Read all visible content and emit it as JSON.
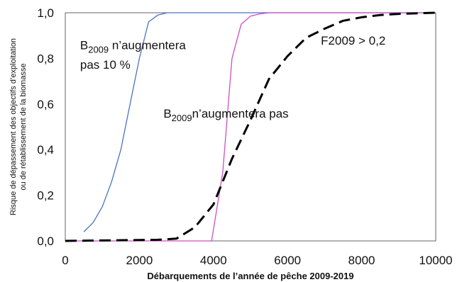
{
  "chart_data": {
    "type": "line",
    "title": "",
    "xlabel": "Débarquements de l’année de pêche 2009-2019",
    "ylabel": [
      "Risque de dépassement des objectifs d’exploitation",
      "ou de rétablissement de la biomasse"
    ],
    "xlim": [
      0,
      10000
    ],
    "ylim": [
      0.0,
      1.0
    ],
    "x_ticks": [
      "0",
      "2000",
      "4000",
      "6000",
      "8000",
      "10000"
    ],
    "y_ticks": [
      "0,0",
      "0,2",
      "0,4",
      "0,6",
      "0,8",
      "1,0"
    ],
    "grid": false,
    "series": [
      {
        "color": "#4a72c4",
        "dash": "solid",
        "points": [
          [
            500,
            0.04
          ],
          [
            750,
            0.08
          ],
          [
            1000,
            0.15
          ],
          [
            1250,
            0.26
          ],
          [
            1500,
            0.4
          ],
          [
            1750,
            0.6
          ],
          [
            2000,
            0.8
          ],
          [
            2250,
            0.96
          ],
          [
            2500,
            0.99
          ],
          [
            2750,
            1.0
          ],
          [
            3000,
            1.0
          ],
          [
            4000,
            1.0
          ],
          [
            6000,
            1.0
          ],
          [
            8000,
            1.0
          ],
          [
            10000,
            1.0
          ]
        ]
      },
      {
        "color": "#cc4fc4",
        "dash": "solid",
        "points": [
          [
            0,
            0.0
          ],
          [
            3000,
            0.0
          ],
          [
            3950,
            0.0
          ],
          [
            4250,
            0.3
          ],
          [
            4500,
            0.8
          ],
          [
            4750,
            0.95
          ],
          [
            5000,
            0.985
          ],
          [
            5250,
            0.995
          ],
          [
            5500,
            1.0
          ],
          [
            6000,
            1.0
          ],
          [
            8000,
            1.0
          ],
          [
            10000,
            1.0
          ]
        ]
      },
      {
        "color": "#000000",
        "dash": "dashed",
        "points": [
          [
            0,
            0.0
          ],
          [
            2500,
            0.005
          ],
          [
            3000,
            0.01
          ],
          [
            3500,
            0.06
          ],
          [
            4000,
            0.16
          ],
          [
            4500,
            0.36
          ],
          [
            5000,
            0.53
          ],
          [
            5500,
            0.71
          ],
          [
            6000,
            0.81
          ],
          [
            6500,
            0.89
          ],
          [
            7000,
            0.93
          ],
          [
            7500,
            0.965
          ],
          [
            8000,
            0.98
          ],
          [
            8500,
            0.99
          ],
          [
            9000,
            0.995
          ],
          [
            10000,
            1.0
          ]
        ]
      }
    ],
    "annotations": [
      {
        "base": "B",
        "sub": "2009",
        "rest": " n’augmentera",
        "x": 400,
        "y": 0.84
      },
      {
        "base": "",
        "sub": "",
        "rest": "pas 10 %",
        "x": 400,
        "y": 0.755
      },
      {
        "base": "B",
        "sub": "2009",
        "rest": "n’augmentera pas",
        "x": 2650,
        "y": 0.54
      },
      {
        "base": "",
        "sub": "",
        "rest": "F2009 > 0,2",
        "x": 6900,
        "y": 0.86
      }
    ]
  }
}
